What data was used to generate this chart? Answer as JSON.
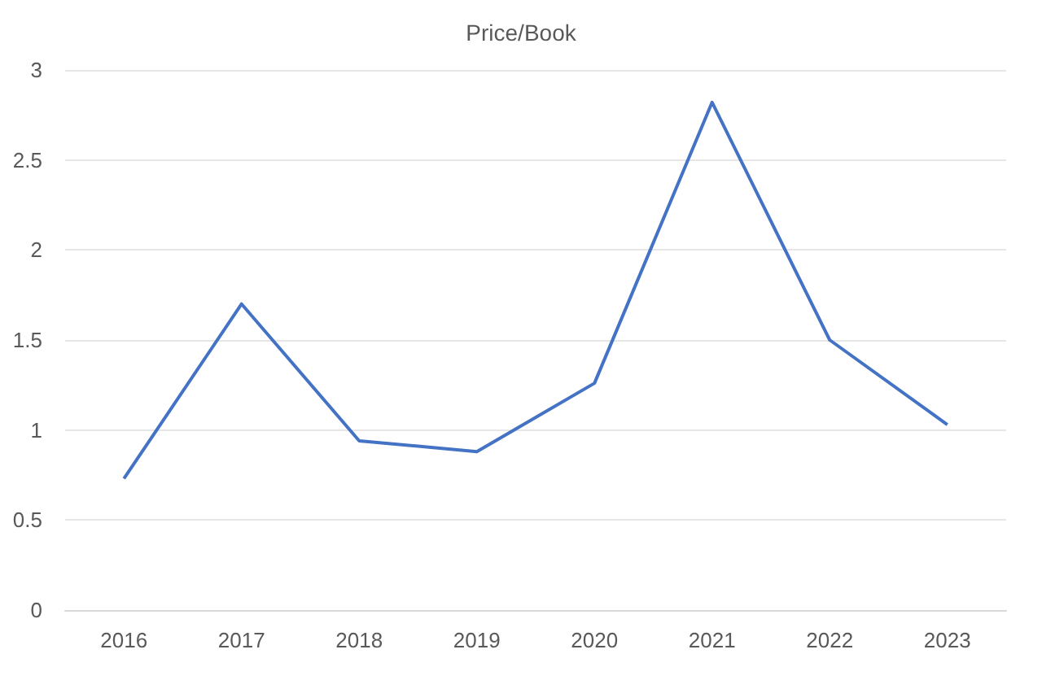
{
  "chart_data": {
    "type": "line",
    "title": "Price/Book",
    "categories": [
      "2016",
      "2017",
      "2018",
      "2019",
      "2020",
      "2021",
      "2022",
      "2023"
    ],
    "series": [
      {
        "color": "#4472c4",
        "values": [
          0.73,
          1.7,
          0.94,
          0.88,
          1.26,
          2.82,
          1.5,
          1.03
        ]
      }
    ],
    "ylim": [
      0,
      3
    ],
    "yticks": [
      0,
      0.5,
      1,
      1.5,
      2,
      2.5,
      3
    ],
    "grid": "y",
    "marker": "none",
    "line_style": "solid"
  }
}
